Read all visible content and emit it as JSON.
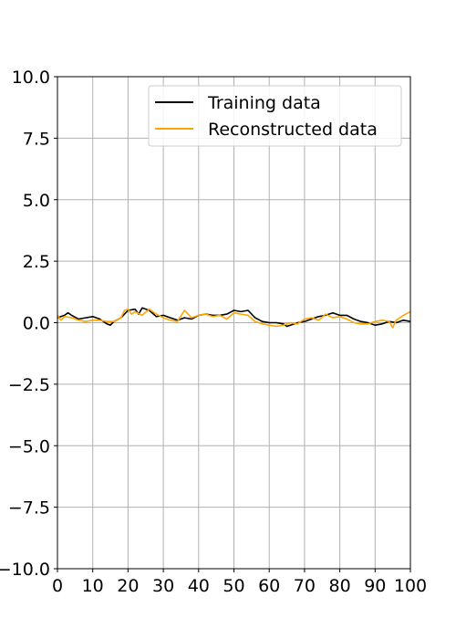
{
  "chart_data": {
    "type": "line",
    "title": "",
    "xlabel": "",
    "ylabel": "",
    "xlim": [
      0,
      100
    ],
    "ylim": [
      -10,
      10
    ],
    "xticks": [
      0,
      10,
      20,
      30,
      40,
      50,
      60,
      70,
      80,
      90,
      100
    ],
    "xtick_labels": [
      "0",
      "10",
      "20",
      "30",
      "40",
      "50",
      "60",
      "70",
      "80",
      "90",
      "100"
    ],
    "yticks": [
      -10,
      -7.5,
      -5,
      -2.5,
      0,
      2.5,
      5,
      7.5,
      10
    ],
    "ytick_labels": [
      "−10.0",
      "−7.5",
      "−5.0",
      "−2.5",
      "0.0",
      "2.5",
      "5.0",
      "7.5",
      "10.0"
    ],
    "grid": true,
    "legend_position": "top-right",
    "series": [
      {
        "name": "Training data",
        "color": "#000000",
        "x": [
          0,
          2,
          3,
          4,
          6,
          8,
          10,
          12,
          14,
          15,
          16,
          18,
          20,
          22,
          23,
          24,
          26,
          28,
          30,
          32,
          34,
          36,
          38,
          40,
          42,
          44,
          46,
          48,
          50,
          52,
          54,
          56,
          58,
          60,
          62,
          64,
          65,
          66,
          68,
          70,
          72,
          74,
          76,
          78,
          80,
          82,
          84,
          86,
          88,
          90,
          92,
          94,
          96,
          98,
          100
        ],
        "values": [
          0.2,
          0.3,
          0.4,
          0.3,
          0.15,
          0.2,
          0.25,
          0.15,
          -0.05,
          -0.1,
          0.05,
          0.2,
          0.5,
          0.55,
          0.35,
          0.6,
          0.5,
          0.25,
          0.3,
          0.2,
          0.1,
          0.2,
          0.15,
          0.3,
          0.35,
          0.3,
          0.3,
          0.35,
          0.5,
          0.45,
          0.5,
          0.2,
          0.05,
          0.0,
          0.0,
          -0.05,
          -0.15,
          -0.1,
          0.0,
          0.05,
          0.15,
          0.25,
          0.3,
          0.4,
          0.3,
          0.3,
          0.15,
          0.05,
          0.0,
          -0.1,
          -0.05,
          0.05,
          0.0,
          0.1,
          0.05
        ]
      },
      {
        "name": "Reconstructed data",
        "color": "#ffa500",
        "x": [
          0,
          1,
          2,
          4,
          6,
          8,
          10,
          12,
          14,
          16,
          18,
          19,
          20,
          21,
          22,
          24,
          26,
          28,
          30,
          32,
          34,
          36,
          38,
          40,
          42,
          44,
          46,
          48,
          50,
          52,
          54,
          56,
          58,
          60,
          62,
          64,
          66,
          68,
          70,
          72,
          74,
          76,
          78,
          80,
          82,
          84,
          86,
          88,
          90,
          92,
          94,
          95,
          96,
          98,
          100
        ],
        "values": [
          0.3,
          0.1,
          0.25,
          0.2,
          0.1,
          0.05,
          0.1,
          0.1,
          0.05,
          0.05,
          0.2,
          0.5,
          0.55,
          0.35,
          0.45,
          0.3,
          0.55,
          0.35,
          0.2,
          0.1,
          0.05,
          0.5,
          0.2,
          0.3,
          0.35,
          0.25,
          0.3,
          0.15,
          0.4,
          0.35,
          0.3,
          0.05,
          -0.05,
          -0.1,
          -0.15,
          -0.1,
          0.0,
          -0.05,
          0.15,
          0.2,
          0.1,
          0.35,
          0.2,
          0.25,
          0.15,
          0.0,
          -0.05,
          -0.05,
          0.05,
          0.1,
          0.05,
          -0.2,
          0.1,
          0.3,
          0.45
        ]
      }
    ]
  }
}
